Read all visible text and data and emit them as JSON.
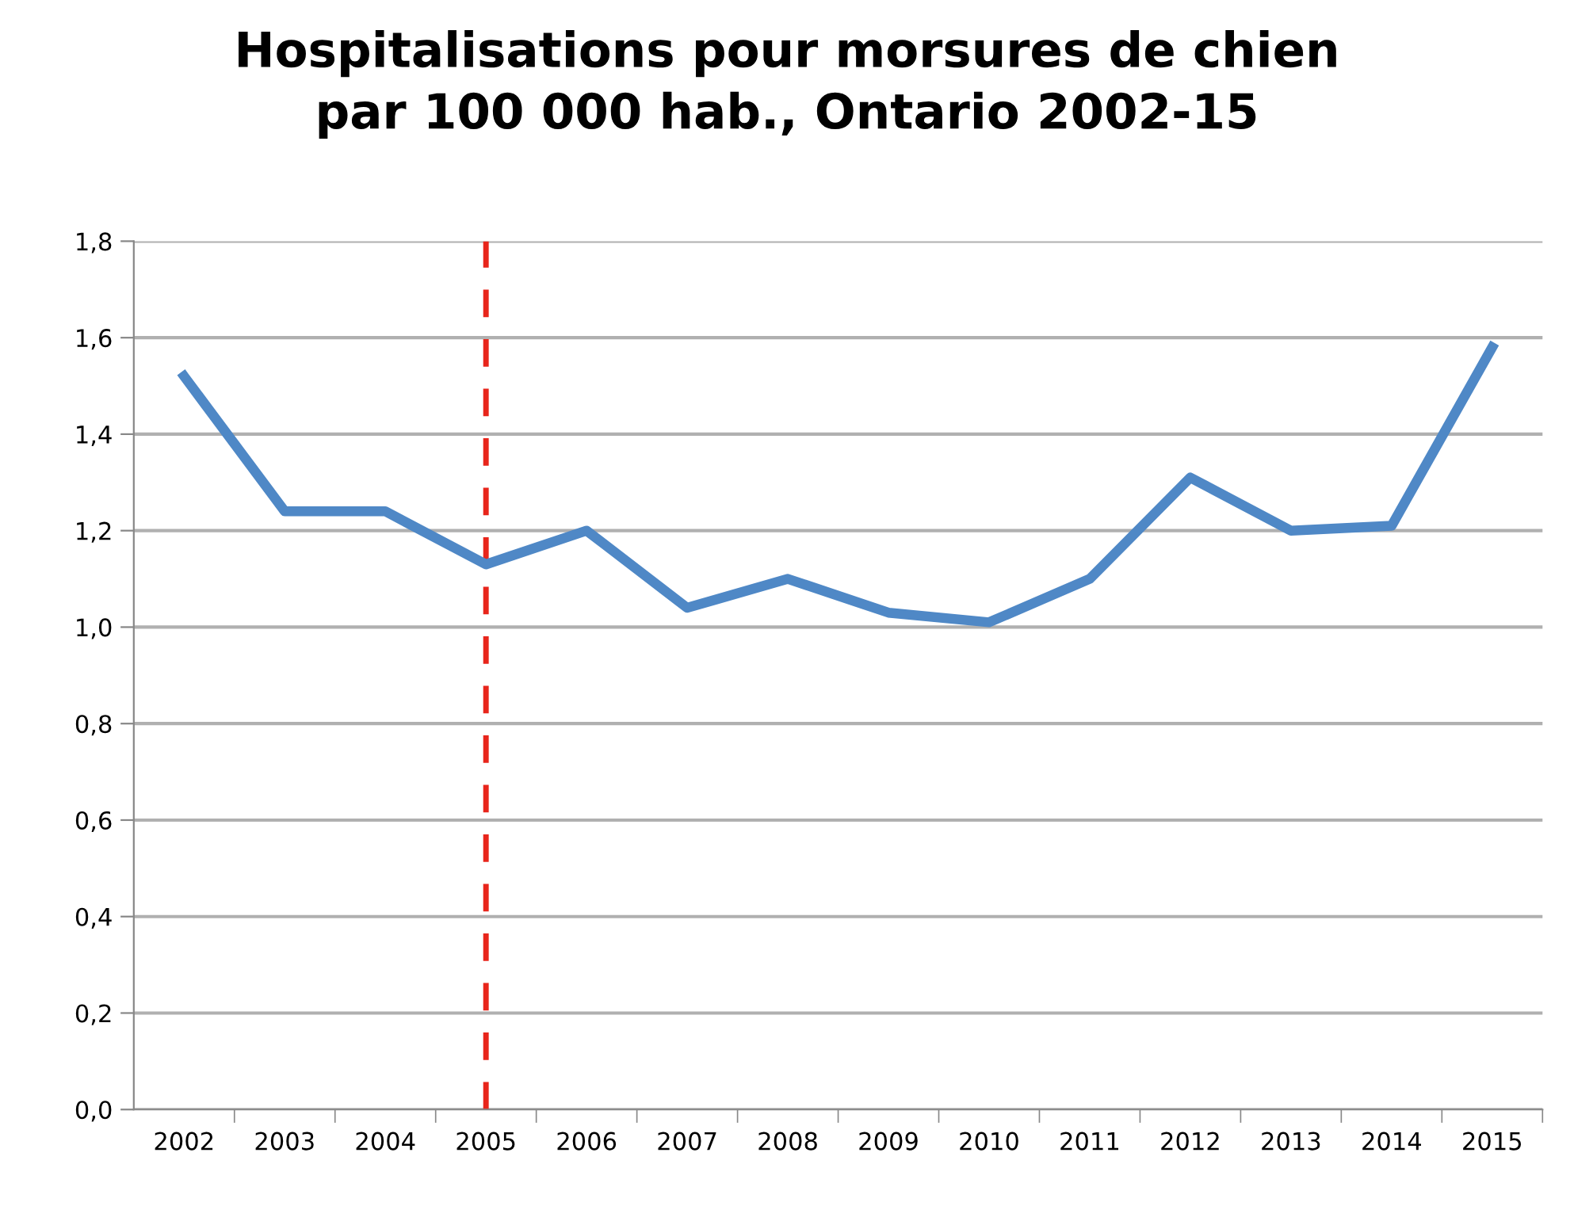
{
  "chart_data": {
    "type": "line",
    "title": "Hospitalisations pour morsures de chien\npar 100 000 hab., Ontario 2002-15",
    "categories": [
      "2002",
      "2003",
      "2004",
      "2005",
      "2006",
      "2007",
      "2008",
      "2009",
      "2010",
      "2011",
      "2012",
      "2013",
      "2014",
      "2015"
    ],
    "series": [
      {
        "color": "#4f88c6",
        "values": [
          1.52,
          1.24,
          1.24,
          1.13,
          1.2,
          1.04,
          1.1,
          1.03,
          1.01,
          1.1,
          1.31,
          1.2,
          1.21,
          1.58
        ]
      }
    ],
    "ylim": [
      0,
      1.8
    ],
    "yticks": [
      {
        "value": 0,
        "label": "0,0"
      },
      {
        "value": 0.2,
        "label": "0,2"
      },
      {
        "value": 0.4,
        "label": "0,4"
      },
      {
        "value": 0.6,
        "label": "0,6"
      },
      {
        "value": 0.8,
        "label": "0,8"
      },
      {
        "value": 1.0,
        "label": "1,0"
      },
      {
        "value": 1.2,
        "label": "1,2"
      },
      {
        "value": 1.4,
        "label": "1,4"
      },
      {
        "value": 1.6,
        "label": "1,6"
      },
      {
        "value": 1.8,
        "label": "1,8"
      }
    ],
    "grid": "y",
    "marker": "none",
    "line_style": "solid",
    "ref_lines": [
      {
        "axis": "x",
        "value": "2005",
        "color": "#e8251b",
        "line_style": "dashed"
      }
    ]
  }
}
